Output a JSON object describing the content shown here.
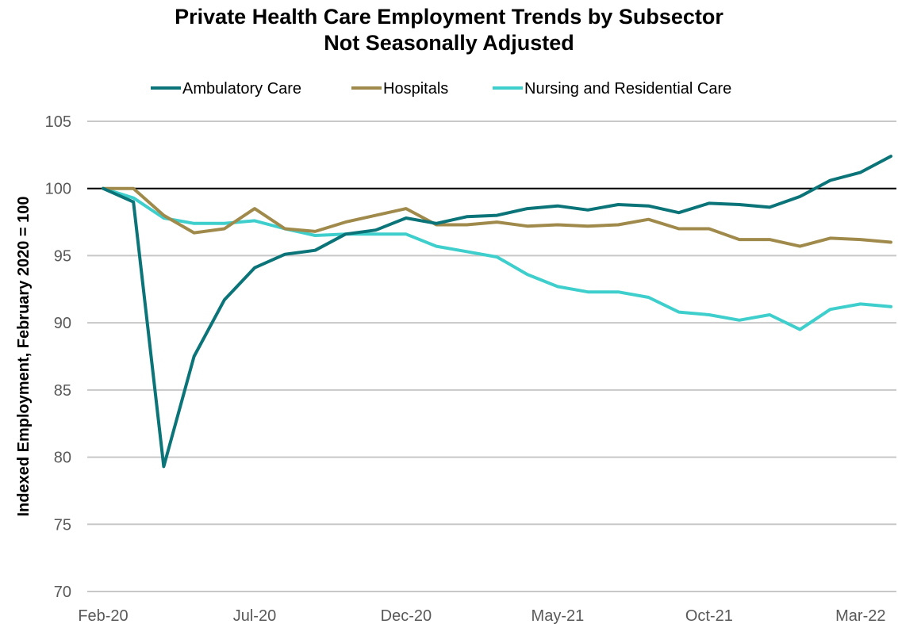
{
  "chart_data": {
    "type": "line",
    "title": "Private Health Care Employment Trends by Subsector",
    "subtitle": "Not Seasonally Adjusted",
    "xlabel": "",
    "ylabel": "Indexed Employment, February 2020 = 100",
    "ylim": [
      70,
      105
    ],
    "yticks": [
      70,
      75,
      80,
      85,
      90,
      95,
      100,
      105
    ],
    "x": [
      "Feb-20",
      "Mar-20",
      "Apr-20",
      "May-20",
      "Jun-20",
      "Jul-20",
      "Aug-20",
      "Sep-20",
      "Oct-20",
      "Nov-20",
      "Dec-20",
      "Jan-21",
      "Feb-21",
      "Mar-21",
      "Apr-21",
      "May-21",
      "Jun-21",
      "Jul-21",
      "Aug-21",
      "Sep-21",
      "Oct-21",
      "Nov-21",
      "Dec-21",
      "Jan-22",
      "Feb-22",
      "Mar-22",
      "Apr-22"
    ],
    "xtick_labels": [
      "Feb-20",
      "Jul-20",
      "Dec-20",
      "May-21",
      "Oct-21",
      "Mar-22"
    ],
    "reference_line": 100,
    "grid": true,
    "legend_position": "top",
    "series": [
      {
        "name": "Ambulatory Care",
        "color": "#0b7478",
        "values": [
          100.0,
          99.0,
          79.3,
          87.5,
          91.7,
          94.1,
          95.1,
          95.4,
          96.6,
          96.9,
          97.8,
          97.4,
          97.9,
          98.0,
          98.5,
          98.7,
          98.4,
          98.8,
          98.7,
          98.2,
          98.9,
          98.8,
          98.6,
          99.4,
          100.6,
          101.2,
          102.4
        ]
      },
      {
        "name": "Hospitals",
        "color": "#a08a4b",
        "values": [
          100.0,
          100.0,
          98.0,
          96.7,
          97.0,
          98.5,
          97.0,
          96.8,
          97.5,
          98.0,
          98.5,
          97.3,
          97.3,
          97.5,
          97.2,
          97.3,
          97.2,
          97.3,
          97.7,
          97.0,
          97.0,
          96.2,
          96.2,
          95.7,
          96.3,
          96.2,
          96.0
        ]
      },
      {
        "name": "Nursing and Residential Care",
        "color": "#3ecfcc",
        "values": [
          100.0,
          99.3,
          97.8,
          97.4,
          97.4,
          97.6,
          97.0,
          96.5,
          96.6,
          96.6,
          96.6,
          95.7,
          95.3,
          94.9,
          93.6,
          92.7,
          92.3,
          92.3,
          91.9,
          90.8,
          90.6,
          90.2,
          90.6,
          89.5,
          91.0,
          91.4,
          91.2
        ]
      }
    ]
  }
}
